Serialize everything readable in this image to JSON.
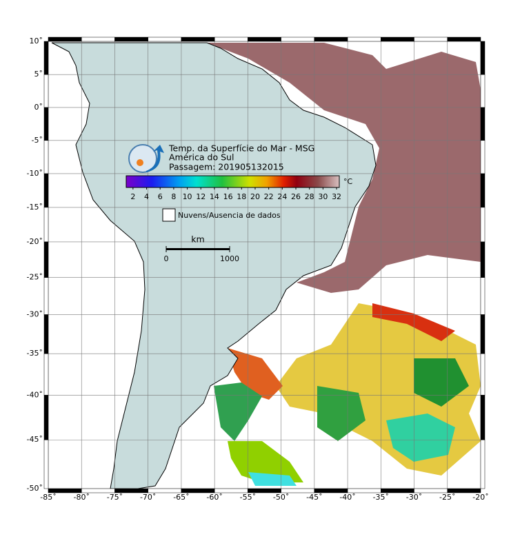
{
  "header": {
    "title": "Temp. da Superfície do Mar - MSG",
    "region": "América do Sul",
    "pass": "Passagem: 201905132015"
  },
  "chart_data": {
    "type": "map",
    "xlim": [
      -85,
      -20
    ],
    "ylim": [
      -50,
      10
    ],
    "grid": true,
    "xticks": [
      {
        "value": -85,
        "label": "-85˚"
      },
      {
        "value": -80,
        "label": "-80˚"
      },
      {
        "value": -75,
        "label": "-75˚"
      },
      {
        "value": -70,
        "label": "-70˚"
      },
      {
        "value": -65,
        "label": "-65˚"
      },
      {
        "value": -60,
        "label": "-60˚"
      },
      {
        "value": -55,
        "label": "-55˚"
      },
      {
        "value": -50,
        "label": "-50˚"
      },
      {
        "value": -45,
        "label": "-45˚"
      },
      {
        "value": -40,
        "label": "-40˚"
      },
      {
        "value": -35,
        "label": "-35˚"
      },
      {
        "value": -30,
        "label": "-30˚"
      },
      {
        "value": -25,
        "label": "-25˚"
      },
      {
        "value": -20,
        "label": "-20˚"
      }
    ],
    "yticks": [
      {
        "value": 10,
        "label": "10˚"
      },
      {
        "value": 5,
        "label": "5˚"
      },
      {
        "value": 0,
        "label": "0˚"
      },
      {
        "value": -5,
        "label": "-5˚"
      },
      {
        "value": -10,
        "label": "-10˚"
      },
      {
        "value": -15,
        "label": "-15˚"
      },
      {
        "value": -20,
        "label": "-20˚"
      },
      {
        "value": -25,
        "label": "-25˚"
      },
      {
        "value": -30,
        "label": "-30˚"
      },
      {
        "value": -35,
        "label": "-35˚"
      },
      {
        "value": -40,
        "label": "-40˚"
      },
      {
        "value": -45,
        "label": "-45˚"
      },
      {
        "value": -50,
        "label": "-50˚"
      }
    ],
    "colorbar": {
      "label": "°C",
      "lim": [
        1,
        32.4
      ],
      "ticks": [
        2,
        4,
        6,
        8,
        10,
        12,
        14,
        16,
        18,
        20,
        22,
        24,
        26,
        28,
        30,
        32
      ]
    },
    "legend": "Nuvens/Ausencia de dados",
    "scale_bar": {
      "unit": "km",
      "labels": [
        "0",
        "1000"
      ]
    }
  }
}
